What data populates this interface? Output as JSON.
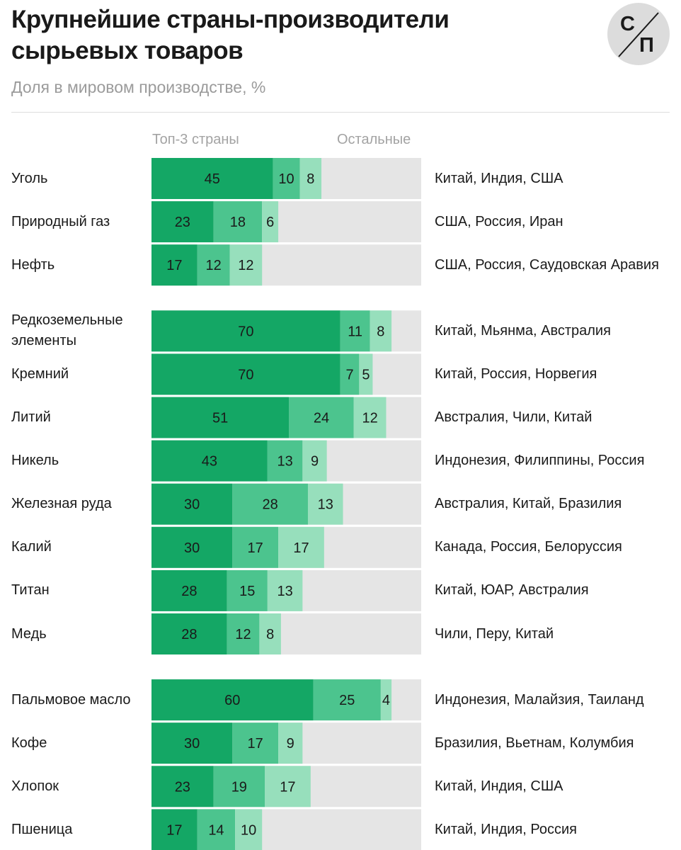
{
  "header": {
    "title": "Крупнейшие страны-производители сырьевых товаров",
    "subtitle": "Доля в мировом производстве, %",
    "logo_top": "С",
    "logo_bottom": "П"
  },
  "legend": {
    "top3": "Топ-3 страны",
    "rest": "Остальные"
  },
  "colors": {
    "first": "#14a765",
    "second": "#4cc48e",
    "third": "#97dfbc",
    "rest": "#e5e5e5"
  },
  "chart_data": {
    "type": "bar",
    "stacked": true,
    "orientation": "horizontal",
    "title": "Крупнейшие страны-производители сырьевых товаров",
    "subtitle": "Доля в мировом производстве, %",
    "xlim": [
      0,
      100
    ],
    "legend": [
      "Топ-3 страны",
      "Остальные"
    ],
    "rows": [
      {
        "label": "Уголь",
        "values": [
          45,
          10,
          8
        ],
        "countries": "Китай, Индия, США"
      },
      {
        "label": "Природный газ",
        "values": [
          23,
          18,
          6
        ],
        "countries": "США, Россия, Иран"
      },
      {
        "label": "Нефть",
        "values": [
          17,
          12,
          12
        ],
        "countries": "США, Россия, Саудовская Аравия"
      },
      {
        "label": "Редкоземельные элементы",
        "values": [
          70,
          11,
          8
        ],
        "countries": "Китай, Мьянма, Австралия"
      },
      {
        "label": "Кремний",
        "values": [
          70,
          7,
          5
        ],
        "countries": "Китай, Россия, Норвегия"
      },
      {
        "label": "Литий",
        "values": [
          51,
          24,
          12
        ],
        "countries": "Австралия, Чили, Китай"
      },
      {
        "label": "Никель",
        "values": [
          43,
          13,
          9
        ],
        "countries": "Индонезия, Филиппины, Россия"
      },
      {
        "label": "Железная руда",
        "values": [
          30,
          28,
          13
        ],
        "countries": "Австралия, Китай, Бразилия"
      },
      {
        "label": "Калий",
        "values": [
          30,
          17,
          17
        ],
        "countries": "Канада, Россия, Белоруссия"
      },
      {
        "label": "Титан",
        "values": [
          28,
          15,
          13
        ],
        "countries": "Китай, ЮАР, Австралия"
      },
      {
        "label": "Медь",
        "values": [
          28,
          12,
          8
        ],
        "countries": "Чили, Перу, Китай"
      },
      {
        "label": "Пальмовое масло",
        "values": [
          60,
          25,
          4
        ],
        "countries": "Индонезия, Малайзия, Таиланд"
      },
      {
        "label": "Кофе",
        "values": [
          30,
          17,
          9
        ],
        "countries": "Бразилия, Вьетнам, Колумбия"
      },
      {
        "label": "Хлопок",
        "values": [
          23,
          19,
          17
        ],
        "countries": "Китай, Индия, США"
      },
      {
        "label": "Пшеница",
        "values": [
          17,
          14,
          10
        ],
        "countries": "Китай, Индия, Россия"
      }
    ]
  }
}
